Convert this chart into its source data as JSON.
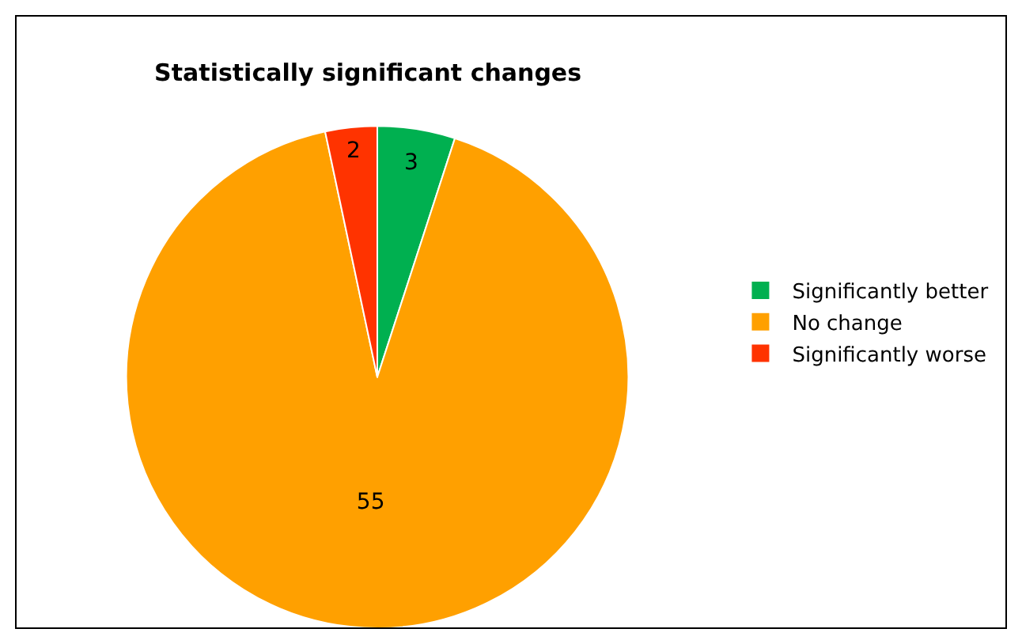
{
  "chart_data": {
    "type": "pie",
    "title": "Statistically significant changes",
    "categories": [
      "Significantly better",
      "No change",
      "Significantly worse"
    ],
    "values": [
      3,
      55,
      2
    ],
    "colors": [
      "#00b050",
      "#ffa000",
      "#ff3300"
    ],
    "data_labels": true,
    "legend": "right"
  }
}
